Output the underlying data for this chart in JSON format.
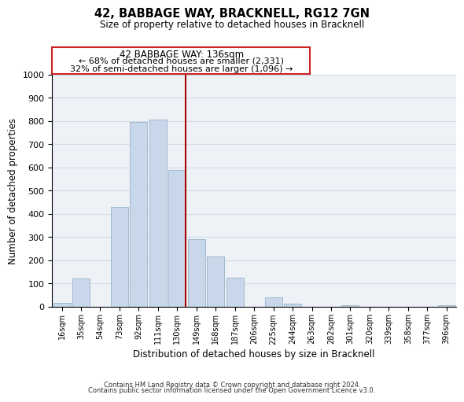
{
  "title": "42, BABBAGE WAY, BRACKNELL, RG12 7GN",
  "subtitle": "Size of property relative to detached houses in Bracknell",
  "xlabel": "Distribution of detached houses by size in Bracknell",
  "ylabel": "Number of detached properties",
  "bar_color": "#c8d8ea",
  "bar_edge_color": "#a0b8cc",
  "grid_color": "#d0dce8",
  "background_color": "#eef2f7",
  "tick_labels": [
    "16sqm",
    "35sqm",
    "54sqm",
    "73sqm",
    "92sqm",
    "111sqm",
    "130sqm",
    "149sqm",
    "168sqm",
    "187sqm",
    "206sqm",
    "225sqm",
    "244sqm",
    "263sqm",
    "282sqm",
    "301sqm",
    "320sqm",
    "339sqm",
    "358sqm",
    "377sqm",
    "396sqm"
  ],
  "bar_heights": [
    18,
    120,
    0,
    430,
    795,
    805,
    590,
    290,
    215,
    125,
    0,
    42,
    14,
    0,
    0,
    7,
    0,
    0,
    0,
    0,
    7
  ],
  "ylim": [
    0,
    1000
  ],
  "yticks": [
    0,
    100,
    200,
    300,
    400,
    500,
    600,
    700,
    800,
    900,
    1000
  ],
  "property_line_color": "#aa0000",
  "annotation_title": "42 BABBAGE WAY: 136sqm",
  "annotation_line1": "← 68% of detached houses are smaller (2,331)",
  "annotation_line2": "32% of semi-detached houses are larger (1,096) →",
  "annotation_box_color": "#ffffff",
  "annotation_box_edge_color": "#cc2222",
  "footnote1": "Contains HM Land Registry data © Crown copyright and database right 2024.",
  "footnote2": "Contains public sector information licensed under the Open Government Licence v3.0."
}
